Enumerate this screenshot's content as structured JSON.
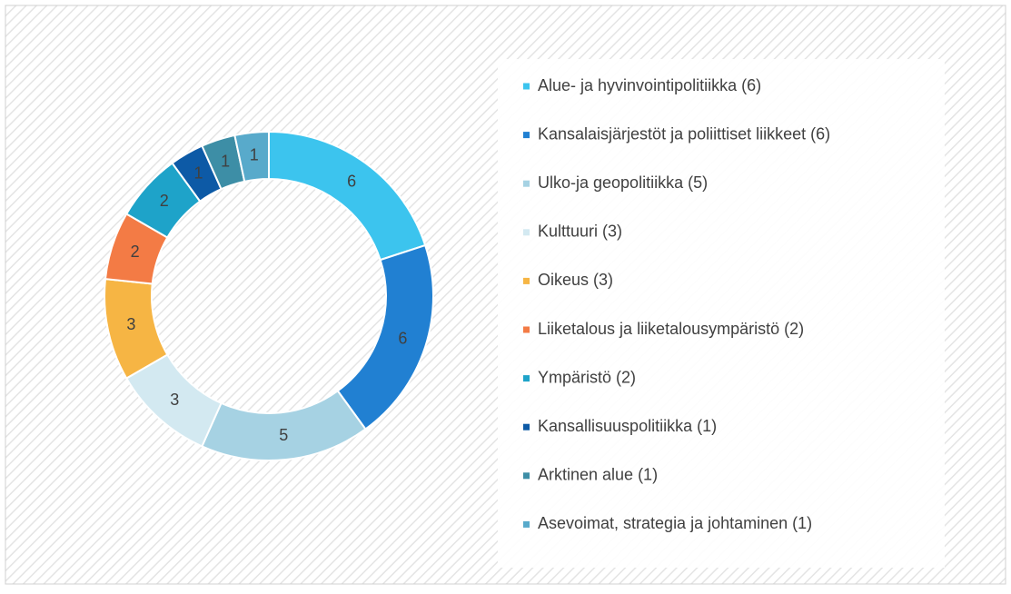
{
  "chart_data": {
    "type": "donut",
    "categories": [
      "Alue- ja hyvinvointipolitiikka  (6)",
      "Kansalaisjärjestöt ja poliittiset liikkeet  (6)",
      "Ulko-ja geopolitiikka  (5)",
      "Kulttuuri  (3)",
      "Oikeus   (3)",
      "Liiketalous ja liiketalousympäristö  (2)",
      "Ympäristö  (2)",
      "Kansallisuuspolitiikka  (1)",
      "Arktinen alue  (1)",
      "Asevoimat, strategia ja johtaminen  (1)"
    ],
    "values": [
      6,
      6,
      5,
      3,
      3,
      2,
      2,
      1,
      1,
      1
    ],
    "colors": [
      "#3cc4ee",
      "#2180d2",
      "#a6d2e3",
      "#d3e9f1",
      "#f6b544",
      "#f37b45",
      "#1ea3c9",
      "#0d5aa6",
      "#3d8ea6",
      "#58aacb"
    ],
    "legend": "right"
  }
}
